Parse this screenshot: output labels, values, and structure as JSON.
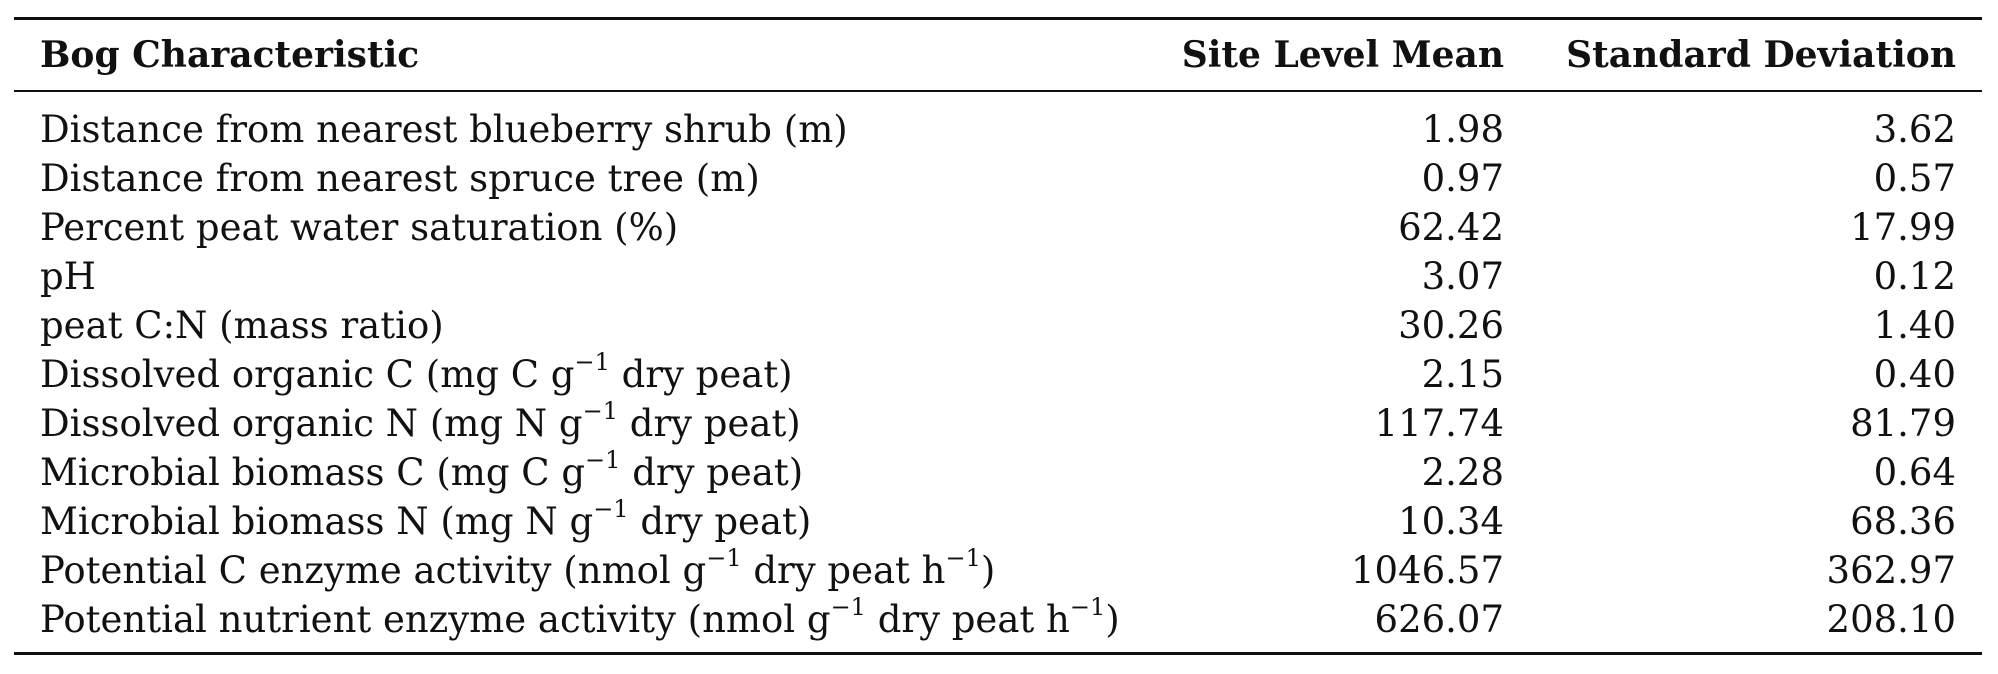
{
  "table": {
    "headers": {
      "characteristic": "Bog Characteristic",
      "mean": "Site Level Mean",
      "sd": "Standard Deviation"
    },
    "rows": [
      {
        "pre": "Distance from nearest blueberry shrub (m)",
        "sup1": "",
        "mid": "",
        "sup2": "",
        "post": "",
        "mean": "1.98",
        "sd": "3.62"
      },
      {
        "pre": "Distance from nearest spruce tree (m)",
        "sup1": "",
        "mid": "",
        "sup2": "",
        "post": "",
        "mean": "0.97",
        "sd": "0.57"
      },
      {
        "pre": "Percent peat water saturation (%)",
        "sup1": "",
        "mid": "",
        "sup2": "",
        "post": "",
        "mean": "62.42",
        "sd": "17.99"
      },
      {
        "pre": "pH",
        "sup1": "",
        "mid": "",
        "sup2": "",
        "post": "",
        "mean": "3.07",
        "sd": "0.12"
      },
      {
        "pre": "peat C:N (mass ratio)",
        "sup1": "",
        "mid": "",
        "sup2": "",
        "post": "",
        "mean": "30.26",
        "sd": "1.40"
      },
      {
        "pre": "Dissolved organic C (mg C g",
        "sup1": "−1",
        "mid": " dry peat)",
        "sup2": "",
        "post": "",
        "mean": "2.15",
        "sd": "0.40"
      },
      {
        "pre": "Dissolved organic N (mg N g",
        "sup1": "−1",
        "mid": " dry peat)",
        "sup2": "",
        "post": "",
        "mean": "117.74",
        "sd": "81.79"
      },
      {
        "pre": "Microbial biomass C (mg C g",
        "sup1": "−1",
        "mid": " dry peat)",
        "sup2": "",
        "post": "",
        "mean": "2.28",
        "sd": "0.64"
      },
      {
        "pre": "Microbial biomass N (mg N g",
        "sup1": "−1",
        "mid": " dry peat)",
        "sup2": "",
        "post": "",
        "mean": "10.34",
        "sd": "68.36"
      },
      {
        "pre": "Potential C enzyme activity (nmol g",
        "sup1": "−1",
        "mid": " dry peat h",
        "sup2": "−1",
        "post": ")",
        "mean": "1046.57",
        "sd": "362.97"
      },
      {
        "pre": "Potential nutrient enzyme activity (nmol g",
        "sup1": "−1",
        "mid": " dry peat h",
        "sup2": "−1",
        "post": ")",
        "mean": "626.07",
        "sd": "208.10"
      }
    ]
  }
}
